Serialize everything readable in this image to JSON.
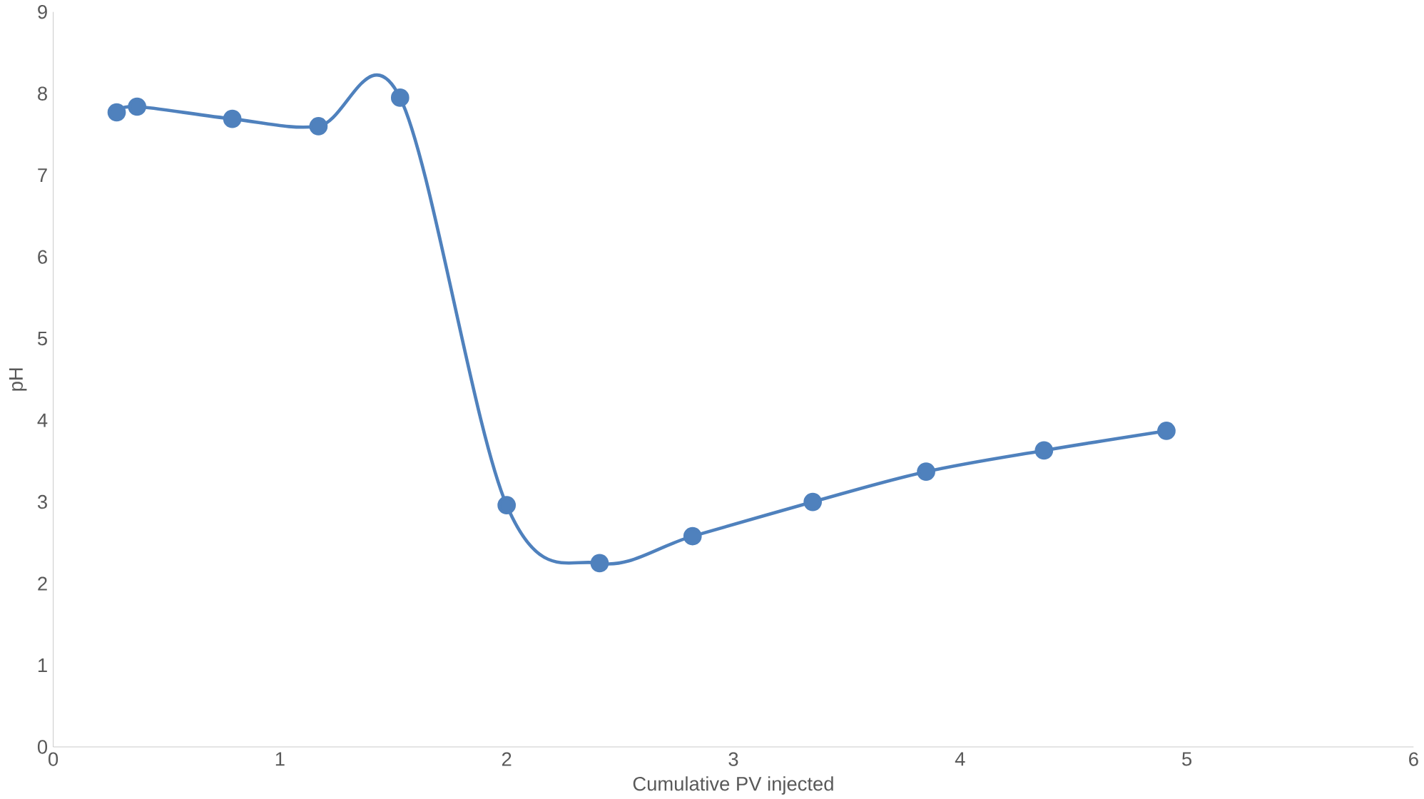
{
  "chart_data": {
    "type": "line",
    "xlabel": "Cumulative PV injected",
    "ylabel": "pH",
    "x": [
      0.28,
      0.37,
      0.79,
      1.17,
      1.53,
      2.0,
      2.41,
      2.82,
      3.35,
      3.85,
      4.37,
      4.91
    ],
    "series": [
      {
        "color": "#4f81bd",
        "values": [
          7.77,
          7.84,
          7.69,
          7.6,
          7.95,
          2.96,
          2.25,
          2.58,
          3.0,
          3.37,
          3.63,
          3.87
        ]
      }
    ],
    "xlim": [
      0,
      6
    ],
    "xticks": [
      0,
      1,
      2,
      3,
      4,
      5,
      6
    ],
    "ylim": [
      0,
      9
    ],
    "yticks": [
      0,
      1,
      2,
      3,
      4,
      5,
      6,
      7,
      8,
      9
    ],
    "marker": "circle",
    "line_style": "solid"
  }
}
